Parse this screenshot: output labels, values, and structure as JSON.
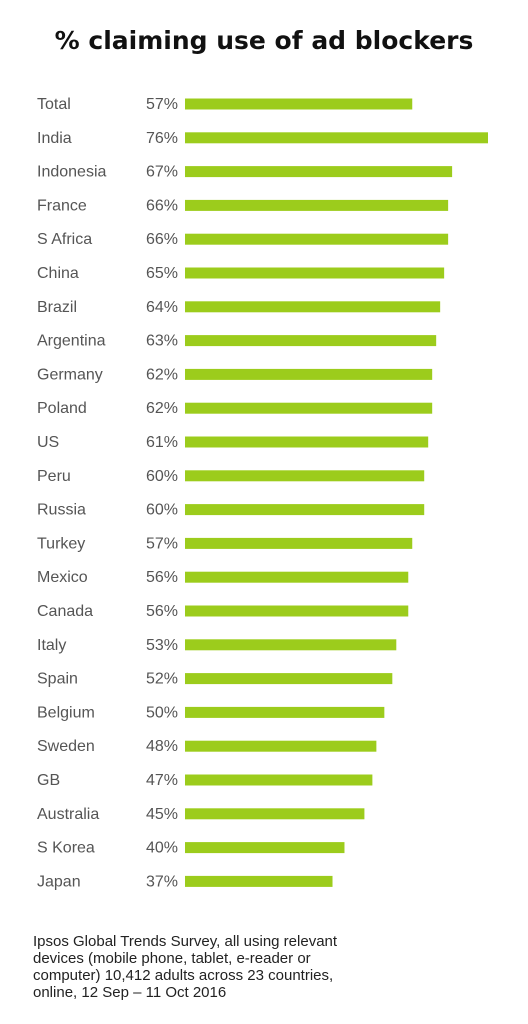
{
  "chart_data": {
    "type": "bar",
    "orientation": "horizontal",
    "title": "% claiming use of ad blockers",
    "categories": [
      "Total",
      "India",
      "Indonesia",
      "France",
      "S Africa",
      "China",
      "Brazil",
      "Argentina",
      "Germany",
      "Poland",
      "US",
      "Peru",
      "Russia",
      "Turkey",
      "Mexico",
      "Canada",
      "Italy",
      "Spain",
      "Belgium",
      "Sweden",
      "GB",
      "Australia",
      "S Korea",
      "Japan"
    ],
    "values": [
      57,
      76,
      67,
      66,
      66,
      65,
      64,
      63,
      62,
      62,
      61,
      60,
      60,
      57,
      56,
      56,
      53,
      52,
      50,
      48,
      47,
      45,
      40,
      37
    ],
    "value_labels": [
      "57%",
      "76%",
      "67%",
      "66%",
      "66%",
      "65%",
      "64%",
      "63%",
      "62%",
      "62%",
      "61%",
      "60%",
      "60%",
      "57%",
      "56%",
      "56%",
      "53%",
      "52%",
      "50%",
      "48%",
      "47%",
      "45%",
      "40%",
      "37%"
    ],
    "bar_color": "#9ccc1c",
    "xlim": [
      0,
      76
    ],
    "grid": false,
    "legend": "none"
  },
  "source_note": "Ipsos Global Trends Survey, all using relevant devices (mobile phone, tablet, e-reader or computer) 10,412 adults across 23 countries,  online, 12 Sep – 11 Oct 2016"
}
